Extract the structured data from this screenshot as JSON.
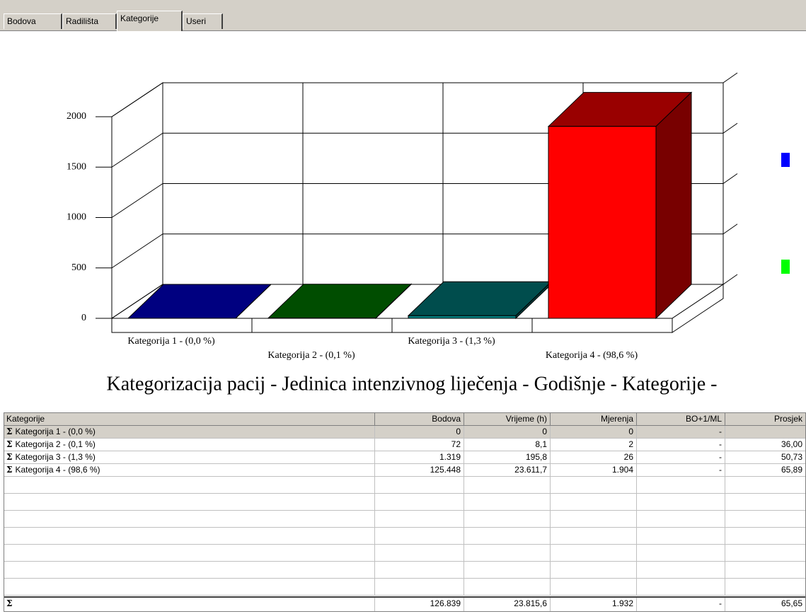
{
  "tabs": [
    "Bodova",
    "Radilišta",
    "Kategorije",
    "Useri"
  ],
  "active_tab": 2,
  "chart_data": {
    "type": "bar3d",
    "title": "Kategorizacija pacij - Jedinica intenzivnog liječenja - Godišnje - Kategorije -",
    "categories": [
      "Kategorija 1 - (0,0 %)",
      "Kategorija 2 - (0,1 %)",
      "Kategorija 3 - (1,3 %)",
      "Kategorija 4 - (98,6 %)"
    ],
    "values": [
      0,
      2,
      26,
      1904
    ],
    "colors": [
      "#000080",
      "#008000",
      "#008080",
      "#ff0000"
    ],
    "ylim": [
      0,
      2000
    ],
    "yticks": [
      0,
      500,
      1000,
      1500,
      2000
    ],
    "grid": true
  },
  "table": {
    "columns": [
      "Kategorije",
      "Bodova",
      "Vrijeme (h)",
      "Mjerenja",
      "BO+1/ML",
      "Prosjek"
    ],
    "symbol": "Σ",
    "rows": [
      [
        "Kategorija 1 - (0,0 %)",
        "0",
        "0",
        "0",
        "-",
        null
      ],
      [
        "Kategorija 2 - (0,1 %)",
        "72",
        "8,1",
        "2",
        "-",
        "36,00"
      ],
      [
        "Kategorija 3 - (1,3 %)",
        "1.319",
        "195,8",
        "26",
        "-",
        "50,73"
      ],
      [
        "Kategorija 4 - (98,6 %)",
        "125.448",
        "23.611,7",
        "1.904",
        "-",
        "65,89"
      ]
    ],
    "total": [
      "126.839",
      "23.815,6",
      "1.932",
      "-",
      "65,65"
    ]
  }
}
